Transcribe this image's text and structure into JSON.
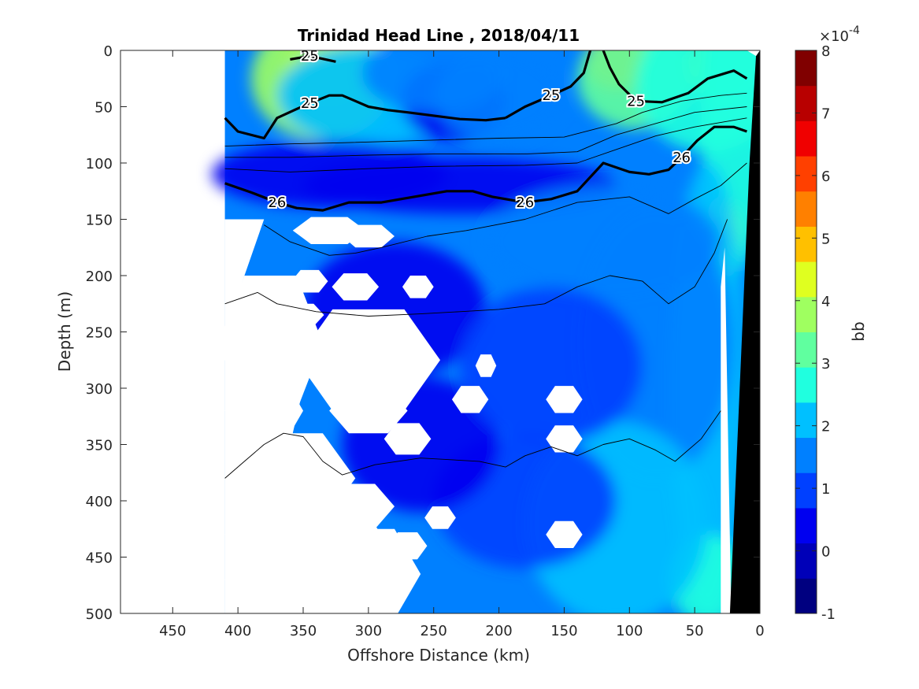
{
  "chart_data": {
    "type": "heatmap",
    "title": "Trinidad Head Line , 2018/04/11",
    "xlabel": "Offshore Distance (km)",
    "ylabel": "Depth (m)",
    "x_reversed": true,
    "xlim": [
      0,
      490
    ],
    "ylim": [
      0,
      500
    ],
    "y_reversed": true,
    "xticks": [
      450,
      400,
      350,
      300,
      250,
      200,
      150,
      100,
      50,
      0
    ],
    "yticks": [
      0,
      50,
      100,
      150,
      200,
      250,
      300,
      350,
      400,
      450,
      500
    ],
    "colorbar": {
      "label": "bb",
      "exponent_label": "×10",
      "exponent_power": "-4",
      "range": [
        -1,
        8
      ],
      "ticks": [
        -1,
        0,
        1,
        2,
        3,
        4,
        5,
        6,
        7,
        8
      ],
      "colors": [
        "#000080",
        "#0000b8",
        "#0000f0",
        "#0040ff",
        "#0080ff",
        "#00c0ff",
        "#20ffdf",
        "#60ff9f",
        "#9fff60",
        "#dfff20",
        "#ffc000",
        "#ff8000",
        "#ff4000",
        "#f00000",
        "#b80000",
        "#800000"
      ]
    },
    "data_x_range": [
      0,
      410
    ],
    "bottom_mask_note": "",
    "density_contours": [
      {
        "label": "25",
        "bold": true,
        "points": [
          [
            410,
            60
          ],
          [
            400,
            72
          ],
          [
            380,
            78
          ],
          [
            370,
            60
          ],
          [
            355,
            52
          ],
          [
            345,
            47
          ],
          [
            330,
            40
          ],
          [
            320,
            40
          ],
          [
            310,
            45
          ],
          [
            300,
            50
          ],
          [
            285,
            53
          ],
          [
            270,
            55
          ],
          [
            250,
            58
          ],
          [
            230,
            61
          ],
          [
            210,
            62
          ],
          [
            195,
            60
          ]
        ]
      },
      {
        "label": "25",
        "bold": true,
        "points": [
          [
            195,
            60
          ],
          [
            180,
            50
          ],
          [
            160,
            40
          ],
          [
            145,
            32
          ],
          [
            135,
            20
          ],
          [
            130,
            0
          ]
        ]
      },
      {
        "label": "25",
        "bold": true,
        "points": [
          [
            360,
            8
          ],
          [
            345,
            5
          ],
          [
            325,
            10
          ]
        ]
      },
      {
        "label": "25",
        "bold": true,
        "points": [
          [
            120,
            0
          ],
          [
            115,
            15
          ],
          [
            108,
            30
          ],
          [
            95,
            45
          ],
          [
            75,
            46
          ],
          [
            55,
            38
          ],
          [
            40,
            25
          ],
          [
            20,
            18
          ],
          [
            10,
            25
          ]
        ]
      },
      {
        "label": "26",
        "bold": true,
        "points": [
          [
            410,
            118
          ],
          [
            390,
            126
          ],
          [
            370,
            135
          ],
          [
            355,
            140
          ],
          [
            335,
            142
          ],
          [
            315,
            135
          ],
          [
            290,
            135
          ],
          [
            265,
            130
          ],
          [
            240,
            125
          ],
          [
            220,
            125
          ],
          [
            205,
            130
          ],
          [
            180,
            135
          ],
          [
            160,
            132
          ],
          [
            140,
            125
          ],
          [
            120,
            100
          ],
          [
            100,
            108
          ],
          [
            85,
            110
          ],
          [
            70,
            106
          ],
          [
            60,
            95
          ],
          [
            48,
            80
          ],
          [
            35,
            68
          ],
          [
            20,
            68
          ],
          [
            10,
            72
          ]
        ]
      },
      {
        "label": "",
        "bold": false,
        "points": [
          [
            410,
            85
          ],
          [
            360,
            83
          ],
          [
            320,
            82
          ],
          [
            260,
            80
          ],
          [
            200,
            78
          ],
          [
            150,
            77
          ],
          [
            110,
            65
          ],
          [
            90,
            55
          ],
          [
            60,
            45
          ],
          [
            30,
            40
          ],
          [
            10,
            38
          ]
        ]
      },
      {
        "label": "",
        "bold": false,
        "points": [
          [
            410,
            95
          ],
          [
            360,
            95
          ],
          [
            300,
            93
          ],
          [
            250,
            92
          ],
          [
            180,
            92
          ],
          [
            140,
            90
          ],
          [
            110,
            75
          ],
          [
            80,
            65
          ],
          [
            50,
            55
          ],
          [
            10,
            50
          ]
        ]
      },
      {
        "label": "",
        "bold": false,
        "points": [
          [
            410,
            105
          ],
          [
            360,
            108
          ],
          [
            300,
            105
          ],
          [
            250,
            103
          ],
          [
            180,
            102
          ],
          [
            140,
            100
          ],
          [
            110,
            88
          ],
          [
            80,
            76
          ],
          [
            50,
            68
          ],
          [
            10,
            60
          ]
        ]
      },
      {
        "label": "",
        "bold": false,
        "points": [
          [
            380,
            155
          ],
          [
            360,
            170
          ],
          [
            330,
            182
          ],
          [
            310,
            180
          ],
          [
            290,
            175
          ],
          [
            255,
            165
          ],
          [
            225,
            160
          ],
          [
            180,
            150
          ],
          [
            140,
            135
          ],
          [
            100,
            130
          ],
          [
            70,
            145
          ],
          [
            50,
            132
          ],
          [
            30,
            120
          ],
          [
            10,
            100
          ]
        ]
      },
      {
        "label": "",
        "bold": false,
        "points": [
          [
            410,
            225
          ],
          [
            385,
            215
          ],
          [
            370,
            225
          ],
          [
            340,
            232
          ],
          [
            300,
            236
          ],
          [
            260,
            234
          ],
          [
            230,
            232
          ],
          [
            200,
            230
          ],
          [
            165,
            225
          ],
          [
            140,
            210
          ],
          [
            115,
            200
          ],
          [
            90,
            205
          ],
          [
            70,
            225
          ],
          [
            50,
            210
          ],
          [
            35,
            180
          ],
          [
            25,
            150
          ]
        ]
      },
      {
        "label": "",
        "bold": false,
        "points": [
          [
            410,
            380
          ],
          [
            395,
            365
          ],
          [
            380,
            350
          ],
          [
            365,
            340
          ],
          [
            350,
            343
          ],
          [
            335,
            365
          ],
          [
            320,
            377
          ],
          [
            295,
            368
          ],
          [
            260,
            362
          ],
          [
            215,
            365
          ],
          [
            195,
            370
          ],
          [
            180,
            360
          ],
          [
            160,
            352
          ],
          [
            140,
            360
          ],
          [
            120,
            350
          ],
          [
            100,
            345
          ],
          [
            80,
            355
          ],
          [
            65,
            365
          ],
          [
            45,
            345
          ],
          [
            30,
            320
          ]
        ]
      }
    ]
  }
}
